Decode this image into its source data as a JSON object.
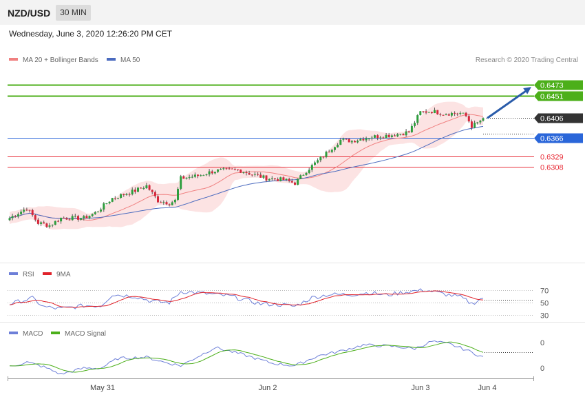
{
  "header": {
    "symbol": "NZD/USD",
    "timeframe": "30 MIN"
  },
  "datetime": "Wednesday, June 3, 2020 12:26:20 PM CET",
  "copyright": "Research © 2020 Trading Central",
  "colors": {
    "green_level": "#4caf1a",
    "blue_level": "#2a66d9",
    "red_level": "#e8303a",
    "bb_fill": "#fbd9d9",
    "ma20": "#f08080",
    "ma50": "#4b6bbf",
    "bull": "#2e9e3e",
    "bear": "#d6273b",
    "arrow": "#2a5caa",
    "rsi": "#6d7fd8",
    "rsi_ma": "#e0222a",
    "macd": "#6d7fd8",
    "macd_signal": "#4caf1a",
    "current_tag": "#333333"
  },
  "chart_data": [
    {
      "type": "candlestick",
      "legend": [
        {
          "name": "MA 20 + Bollinger Bands",
          "color": "#f08080"
        },
        {
          "name": "MA 50",
          "color": "#4b6bbf"
        }
      ],
      "ylim": [
        0.6125,
        0.6505
      ],
      "levels": [
        {
          "value": 0.6473,
          "label": "0.6473",
          "kind": "target"
        },
        {
          "value": 0.6451,
          "label": "0.6451",
          "kind": "target"
        },
        {
          "value": 0.6406,
          "label": "0.6406",
          "kind": "current"
        },
        {
          "value": 0.6366,
          "label": "0.6366",
          "kind": "pivot"
        },
        {
          "value": 0.6329,
          "label": "0.6329",
          "kind": "support"
        },
        {
          "value": 0.6308,
          "label": "0.6308",
          "kind": "support"
        }
      ],
      "x_ticks": [
        "May 31",
        "Jun 2",
        "Jun 3",
        "Jun 4"
      ],
      "anchors": [
        [
          0,
          0.6205
        ],
        [
          6,
          0.6225
        ],
        [
          10,
          0.6195
        ],
        [
          14,
          0.619
        ],
        [
          18,
          0.6205
        ],
        [
          26,
          0.6205
        ],
        [
          30,
          0.6215
        ],
        [
          36,
          0.6245
        ],
        [
          44,
          0.626
        ],
        [
          48,
          0.627
        ],
        [
          52,
          0.624
        ],
        [
          56,
          0.6235
        ],
        [
          58,
          0.624
        ],
        [
          60,
          0.6285
        ],
        [
          66,
          0.629
        ],
        [
          72,
          0.63
        ],
        [
          80,
          0.6302
        ],
        [
          84,
          0.6295
        ],
        [
          90,
          0.6285
        ],
        [
          96,
          0.6282
        ],
        [
          100,
          0.6275
        ],
        [
          104,
          0.63
        ],
        [
          110,
          0.633
        ],
        [
          116,
          0.6362
        ],
        [
          120,
          0.636
        ],
        [
          126,
          0.6368
        ],
        [
          134,
          0.6372
        ],
        [
          140,
          0.6378
        ],
        [
          144,
          0.6418
        ],
        [
          148,
          0.642
        ],
        [
          152,
          0.6415
        ],
        [
          158,
          0.6416
        ],
        [
          160,
          0.641
        ],
        [
          162,
          0.639
        ],
        [
          164,
          0.6396
        ],
        [
          166,
          0.6406
        ]
      ],
      "arrow_to": 0.6473
    },
    {
      "type": "line",
      "series": [
        {
          "name": "RSI"
        },
        {
          "name": "9MA"
        }
      ],
      "ylim": [
        20,
        80
      ],
      "y_ticks": [
        70,
        50,
        30
      ],
      "anchors": [
        [
          0,
          48
        ],
        [
          8,
          57
        ],
        [
          12,
          43
        ],
        [
          18,
          40
        ],
        [
          26,
          45
        ],
        [
          32,
          45
        ],
        [
          36,
          63
        ],
        [
          44,
          60
        ],
        [
          50,
          52
        ],
        [
          56,
          50
        ],
        [
          60,
          68
        ],
        [
          70,
          64
        ],
        [
          78,
          60
        ],
        [
          82,
          55
        ],
        [
          88,
          48
        ],
        [
          94,
          47
        ],
        [
          100,
          44
        ],
        [
          106,
          58
        ],
        [
          112,
          63
        ],
        [
          120,
          63
        ],
        [
          126,
          66
        ],
        [
          132,
          62
        ],
        [
          140,
          68
        ],
        [
          146,
          70
        ],
        [
          152,
          64
        ],
        [
          158,
          59
        ],
        [
          162,
          48
        ],
        [
          166,
          58
        ]
      ]
    },
    {
      "type": "line",
      "series": [
        {
          "name": "MACD"
        },
        {
          "name": "MACD Signal"
        }
      ],
      "y_ticks": [
        0,
        0
      ],
      "anchors": [
        [
          0,
          -0.1
        ],
        [
          6,
          0.1
        ],
        [
          12,
          -0.1
        ],
        [
          18,
          -0.4
        ],
        [
          26,
          -0.15
        ],
        [
          32,
          -0.15
        ],
        [
          38,
          0.25
        ],
        [
          48,
          0.3
        ],
        [
          54,
          0.1
        ],
        [
          60,
          -0.05
        ],
        [
          72,
          0.7
        ],
        [
          82,
          0.4
        ],
        [
          92,
          0.05
        ],
        [
          100,
          -0.05
        ],
        [
          108,
          0.35
        ],
        [
          116,
          0.55
        ],
        [
          124,
          0.8
        ],
        [
          134,
          0.75
        ],
        [
          142,
          0.65
        ],
        [
          148,
          0.95
        ],
        [
          154,
          0.85
        ],
        [
          160,
          0.6
        ],
        [
          166,
          0.3
        ]
      ]
    }
  ]
}
